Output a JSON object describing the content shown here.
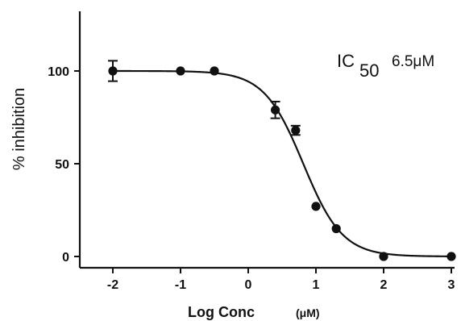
{
  "chart_data": {
    "type": "scatter",
    "title": "",
    "ylabel": "% inhibition",
    "xlabel": "Log Conc",
    "xlabel_unit": "(μM)",
    "xlim": [
      -2.4,
      3.05
    ],
    "ylim": [
      -5,
      128
    ],
    "x_ticks": [
      -2,
      -1,
      0,
      1,
      2,
      3
    ],
    "x_tick_labels": [
      "-2",
      "-1",
      "0",
      "1",
      "2",
      "3"
    ],
    "y_ticks": [
      0,
      50,
      100
    ],
    "y_tick_labels": [
      "0",
      "50",
      "100"
    ],
    "grid": false,
    "annotation": {
      "main": "IC",
      "subscript": "50",
      "value": "6.5μM"
    },
    "series": [
      {
        "points": [
          {
            "x": -2,
            "y": 100,
            "err": 5.5
          },
          {
            "x": -1,
            "y": 100,
            "err": 0
          },
          {
            "x": -0.5,
            "y": 100,
            "err": 0
          },
          {
            "x": 0.4,
            "y": 79,
            "err": 4.5
          },
          {
            "x": 0.7,
            "y": 68,
            "err": 2.5
          },
          {
            "x": 1.0,
            "y": 27,
            "err": 0
          },
          {
            "x": 1.3,
            "y": 15,
            "err": 0
          },
          {
            "x": 2.0,
            "y": 0,
            "err": 0
          },
          {
            "x": 3.0,
            "y": 0,
            "err": 0
          }
        ],
        "fit": {
          "model": "sigmoidal dose-response",
          "top": 100,
          "bottom": 0,
          "log_ic50": 0.813,
          "hill_slope": -1.5
        }
      }
    ],
    "colors": {
      "marker": "#111111",
      "line": "#111111",
      "axis": "#111111"
    }
  }
}
